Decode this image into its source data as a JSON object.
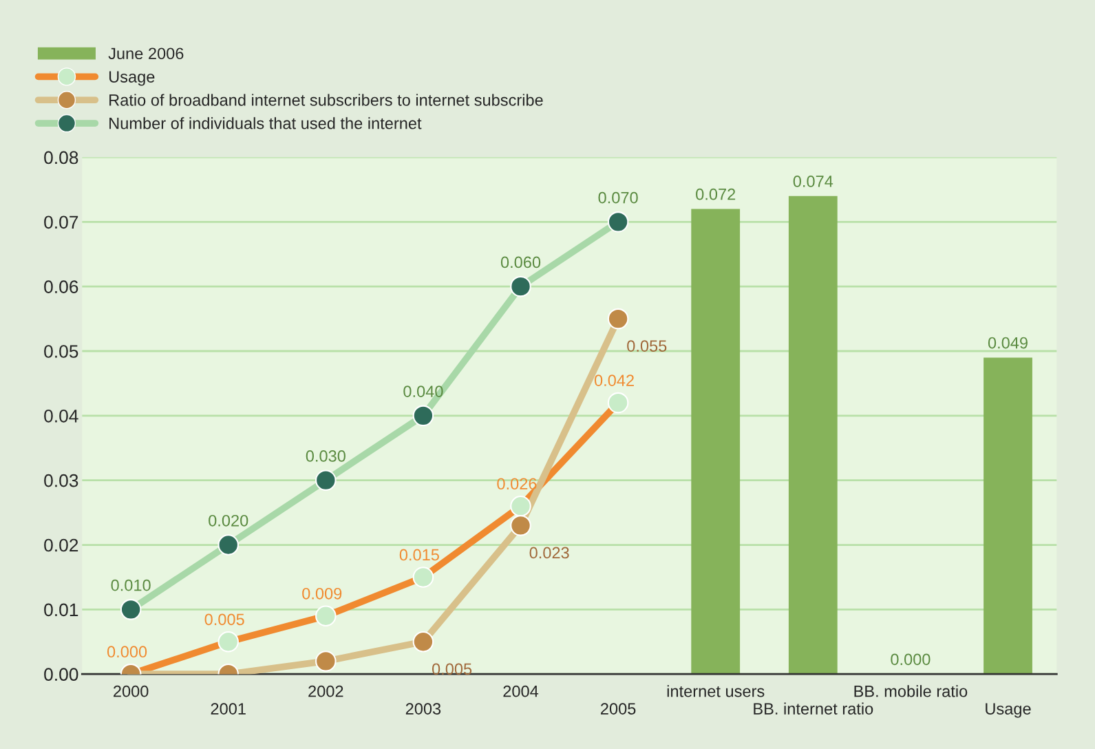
{
  "chart_data": {
    "type": "bar",
    "categories": [
      "2000",
      "2001",
      "2002",
      "2003",
      "2004",
      "2005",
      "internet users",
      "BB. internet ratio",
      "BB. mobile ratio",
      "Usage"
    ],
    "series": [
      {
        "name": "June 2006",
        "color": "#86b35a",
        "values": [
          null,
          null,
          null,
          null,
          null,
          null,
          0.072,
          0.074,
          0.0,
          0.049
        ],
        "value_labels": [
          null,
          null,
          null,
          null,
          null,
          null,
          "0.072",
          "0.074",
          "0.000",
          "0.049"
        ]
      },
      {
        "name": "Usage",
        "type": "line",
        "color": "#f08a30",
        "values": [
          0.0,
          0.005,
          0.009,
          0.015,
          0.026,
          0.042,
          null,
          null,
          null,
          null
        ],
        "value_labels": [
          "0.000",
          "0.005",
          "0.009",
          "0.015",
          "0.026",
          "0.042",
          null,
          null,
          null,
          null
        ]
      },
      {
        "name": "Ratio of broadband internet subscribers to internet subscribe",
        "type": "line",
        "color": "#d8c08a",
        "values": [
          0.0,
          0.0,
          0.002,
          0.005,
          0.023,
          0.055,
          null,
          null,
          null,
          null
        ],
        "value_labels": [
          null,
          null,
          null,
          "0.005",
          "0.023",
          "0.055",
          null,
          null,
          null,
          null
        ]
      },
      {
        "name": "Number of individuals that used the internet",
        "type": "line",
        "color": "#a8d8a8",
        "values": [
          0.01,
          0.02,
          0.03,
          0.04,
          0.06,
          0.07,
          null,
          null,
          null,
          null
        ],
        "value_labels": [
          "0.010",
          "0.020",
          "0.030",
          "0.040",
          "0.060",
          "0.070",
          null,
          null,
          null,
          null
        ]
      }
    ],
    "ylim": [
      0,
      0.08
    ],
    "yticks": [
      {
        "value": 0,
        "label": "0.00"
      },
      {
        "value": 0.01,
        "label": "0.01"
      },
      {
        "value": 0.02,
        "label": "0.02"
      },
      {
        "value": 0.03,
        "label": "0.03"
      },
      {
        "value": 0.04,
        "label": "0.04"
      },
      {
        "value": 0.05,
        "label": "0.05"
      },
      {
        "value": 0.06,
        "label": "0.06"
      },
      {
        "value": 0.07,
        "label": "0.07"
      },
      {
        "value": 0.08,
        "label": "0.08"
      }
    ],
    "grid": "y",
    "legend": "top left",
    "marker": "circle"
  }
}
